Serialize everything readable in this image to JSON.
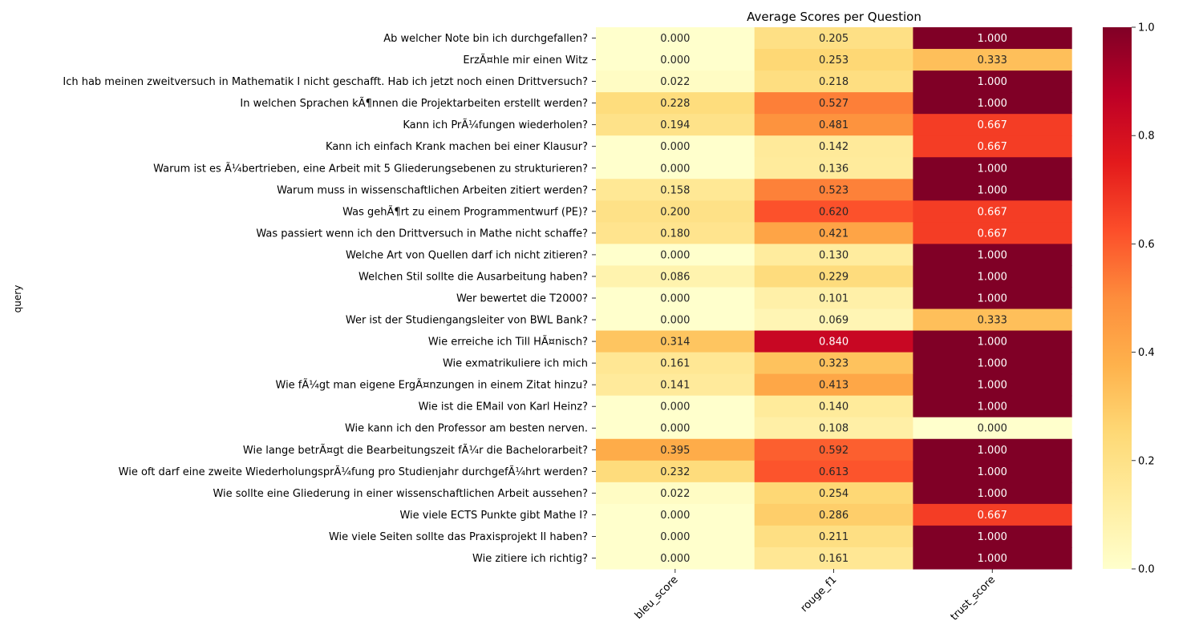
{
  "chart_data": {
    "type": "heatmap",
    "title": "Average Scores per Question",
    "ylabel": "query",
    "xlabel": "",
    "columns": [
      "bleu_score",
      "rouge_f1",
      "trust_score"
    ],
    "rows": [
      "Ab welcher Note bin ich durchgefallen?",
      "ErzÃ¤hle mir einen Witz ",
      "Ich hab meinen zweitversuch in Mathematik I nicht geschafft. Hab ich jetzt noch einen Drittversuch?",
      "In welchen Sprachen kÃ¶nnen die Projektarbeiten erstellt werden?",
      "Kann ich PrÃ¼fungen wiederholen?",
      "Kann ich einfach Krank machen bei einer Klausur?",
      "Warum ist es Ã¼bertrieben, eine Arbeit mit 5 Gliederungsebenen zu strukturieren?",
      "Warum muss in wissenschaftlichen Arbeiten zitiert werden?",
      "Was gehÃ¶rt zu einem Programmentwurf (PE)?",
      "Was passiert wenn ich den Drittversuch in Mathe nicht schaffe?",
      "Welche Art von Quellen darf ich nicht zitieren?",
      "Welchen Stil sollte die Ausarbeitung haben?",
      "Wer bewertet die T2000?",
      "Wer ist der Studiengangsleiter von BWL Bank?",
      "Wie erreiche ich Till HÃ¤nisch?",
      "Wie exmatrikuliere ich mich",
      "Wie fÃ¼gt man eigene ErgÃ¤nzungen in einem Zitat hinzu?",
      "Wie ist die EMail von Karl Heinz?",
      "Wie kann ich den Professor am besten nerven.",
      "Wie lange betrÃ¤gt die Bearbeitungszeit fÃ¼r die Bachelorarbeit?",
      "Wie oft darf eine zweite WiederholungsprÃ¼fung pro Studienjahr durchgefÃ¼hrt werden?",
      "Wie sollte eine Gliederung in einer wissenschaftlichen Arbeit aussehen?",
      "Wie viele ECTS Punkte gibt Mathe I?",
      "Wie viele Seiten sollte das Praxisprojekt II haben?",
      "Wie zitiere ich richtig?"
    ],
    "values": [
      [
        0.0,
        0.205,
        1.0
      ],
      [
        0.0,
        0.253,
        0.333
      ],
      [
        0.022,
        0.218,
        1.0
      ],
      [
        0.228,
        0.527,
        1.0
      ],
      [
        0.194,
        0.481,
        0.667
      ],
      [
        0.0,
        0.142,
        0.667
      ],
      [
        0.0,
        0.136,
        1.0
      ],
      [
        0.158,
        0.523,
        1.0
      ],
      [
        0.2,
        0.62,
        0.667
      ],
      [
        0.18,
        0.421,
        0.667
      ],
      [
        0.0,
        0.13,
        1.0
      ],
      [
        0.086,
        0.229,
        1.0
      ],
      [
        0.0,
        0.101,
        1.0
      ],
      [
        0.0,
        0.069,
        0.333
      ],
      [
        0.314,
        0.84,
        1.0
      ],
      [
        0.161,
        0.323,
        1.0
      ],
      [
        0.141,
        0.413,
        1.0
      ],
      [
        0.0,
        0.14,
        1.0
      ],
      [
        0.0,
        0.108,
        0.0
      ],
      [
        0.395,
        0.592,
        1.0
      ],
      [
        0.232,
        0.613,
        1.0
      ],
      [
        0.022,
        0.254,
        1.0
      ],
      [
        0.0,
        0.286,
        0.667
      ],
      [
        0.0,
        0.211,
        1.0
      ],
      [
        0.0,
        0.161,
        1.0
      ]
    ],
    "colorbar": {
      "range": [
        0,
        1
      ],
      "ticks": [
        "0.0",
        "0.2",
        "0.4",
        "0.6",
        "0.8",
        "1.0"
      ],
      "colormap": "YlOrRd",
      "colors": [
        "#ffffcc",
        "#ffeda0",
        "#fed976",
        "#feb24c",
        "#fd8d3c",
        "#fc4e2a",
        "#e31a1c",
        "#bd0026",
        "#800026"
      ]
    },
    "annotation_format": "3 decimals",
    "grid": false
  }
}
